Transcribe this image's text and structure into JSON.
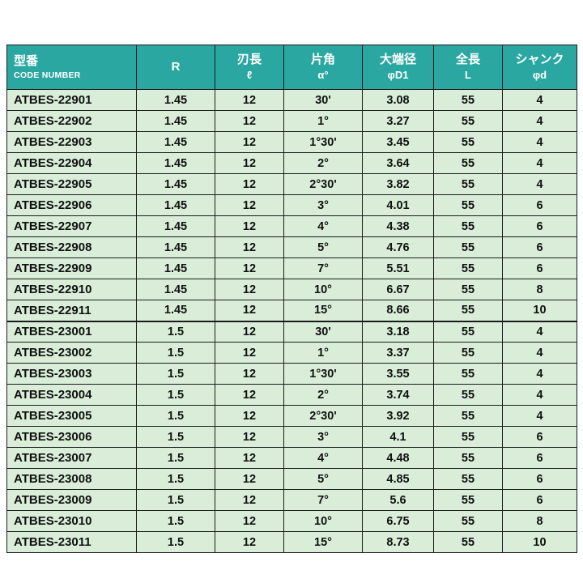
{
  "theme": {
    "header_bg": "#2ba7a2",
    "header_text": "#ffffff",
    "row_bg": "#d9edd9",
    "border": "#1b1b1b",
    "page_bg": "#ffffff"
  },
  "table": {
    "columns": [
      {
        "key": "code",
        "label_ja": "型番",
        "label_sub": "CODE NUMBER"
      },
      {
        "key": "r",
        "label_ja": "R",
        "label_sub": ""
      },
      {
        "key": "flute_length",
        "label_ja": "刃長",
        "label_sub": "ℓ"
      },
      {
        "key": "half_angle",
        "label_ja": "片角",
        "label_sub": "α°"
      },
      {
        "key": "large_end_dia",
        "label_ja": "大端径",
        "label_sub": "φD1"
      },
      {
        "key": "overall_length",
        "label_ja": "全長",
        "label_sub": "L"
      },
      {
        "key": "shank",
        "label_ja": "シャンク",
        "label_sub": "φd"
      }
    ],
    "groups": [
      {
        "rows": [
          [
            "ATBES-22901",
            "1.45",
            "12",
            "30'",
            "3.08",
            "55",
            "4"
          ],
          [
            "ATBES-22902",
            "1.45",
            "12",
            "1°",
            "3.27",
            "55",
            "4"
          ],
          [
            "ATBES-22903",
            "1.45",
            "12",
            "1°30'",
            "3.45",
            "55",
            "4"
          ],
          [
            "ATBES-22904",
            "1.45",
            "12",
            "2°",
            "3.64",
            "55",
            "4"
          ],
          [
            "ATBES-22905",
            "1.45",
            "12",
            "2°30'",
            "3.82",
            "55",
            "4"
          ],
          [
            "ATBES-22906",
            "1.45",
            "12",
            "3°",
            "4.01",
            "55",
            "6"
          ],
          [
            "ATBES-22907",
            "1.45",
            "12",
            "4°",
            "4.38",
            "55",
            "6"
          ],
          [
            "ATBES-22908",
            "1.45",
            "12",
            "5°",
            "4.76",
            "55",
            "6"
          ],
          [
            "ATBES-22909",
            "1.45",
            "12",
            "7°",
            "5.51",
            "55",
            "6"
          ],
          [
            "ATBES-22910",
            "1.45",
            "12",
            "10°",
            "6.67",
            "55",
            "8"
          ],
          [
            "ATBES-22911",
            "1.45",
            "12",
            "15°",
            "8.66",
            "55",
            "10"
          ]
        ]
      },
      {
        "rows": [
          [
            "ATBES-23001",
            "1.5",
            "12",
            "30'",
            "3.18",
            "55",
            "4"
          ],
          [
            "ATBES-23002",
            "1.5",
            "12",
            "1°",
            "3.37",
            "55",
            "4"
          ],
          [
            "ATBES-23003",
            "1.5",
            "12",
            "1°30'",
            "3.55",
            "55",
            "4"
          ],
          [
            "ATBES-23004",
            "1.5",
            "12",
            "2°",
            "3.74",
            "55",
            "4"
          ],
          [
            "ATBES-23005",
            "1.5",
            "12",
            "2°30'",
            "3.92",
            "55",
            "4"
          ],
          [
            "ATBES-23006",
            "1.5",
            "12",
            "3°",
            "4.1",
            "55",
            "6"
          ],
          [
            "ATBES-23007",
            "1.5",
            "12",
            "4°",
            "4.48",
            "55",
            "6"
          ],
          [
            "ATBES-23008",
            "1.5",
            "12",
            "5°",
            "4.85",
            "55",
            "6"
          ],
          [
            "ATBES-23009",
            "1.5",
            "12",
            "7°",
            "5.6",
            "55",
            "6"
          ],
          [
            "ATBES-23010",
            "1.5",
            "12",
            "10°",
            "6.75",
            "55",
            "8"
          ],
          [
            "ATBES-23011",
            "1.5",
            "12",
            "15°",
            "8.73",
            "55",
            "10"
          ]
        ]
      }
    ]
  }
}
